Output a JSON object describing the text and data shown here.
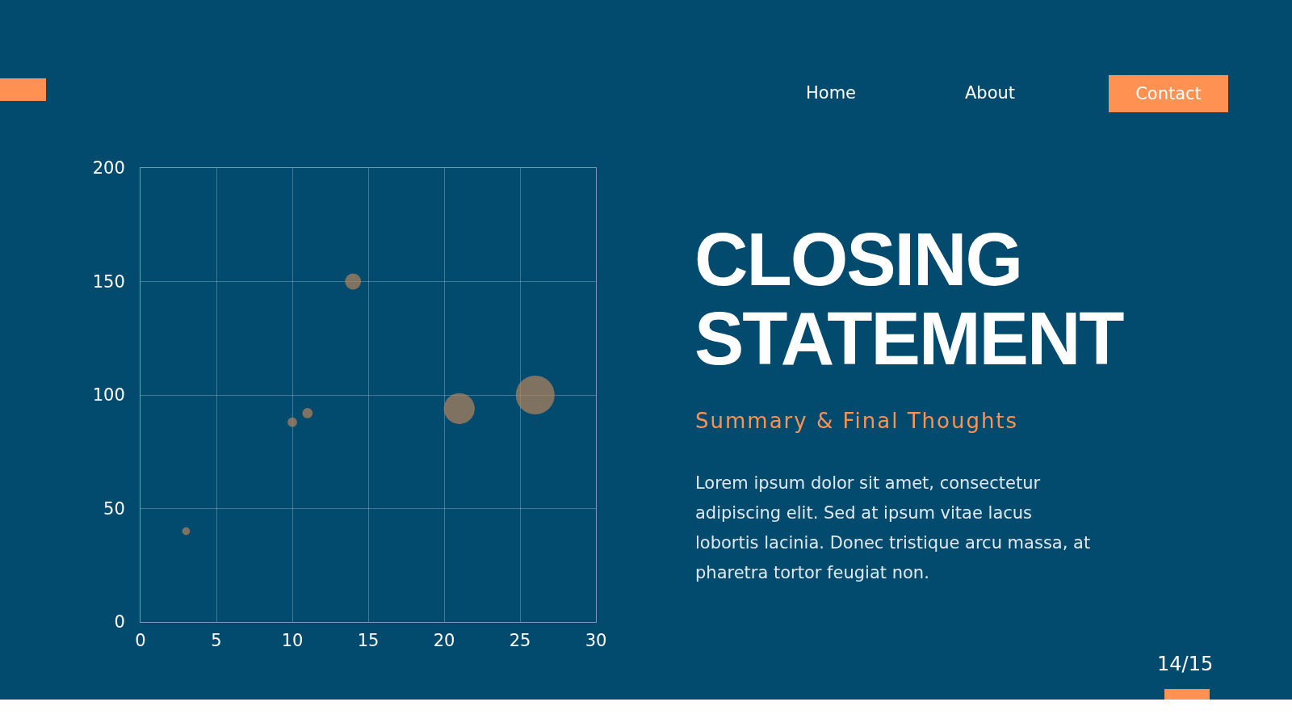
{
  "chart_data": {
    "type": "bubble",
    "title": "CLOSING STATEMENT",
    "subtitle": "Summary & Final Thoughts",
    "annotations": [
      "Home",
      "About",
      "Contact",
      "Lorem ipsum dolor sit amet, consectetur adipiscing elit. Sed at ipsum vitae lacus lobortis lacinia. Donec tristique arcu massa, at pharetra tortor feugiat non.",
      "14/15"
    ],
    "x": [
      3,
      10,
      11,
      14,
      21,
      26
    ],
    "values": [
      40,
      88,
      92,
      150,
      94,
      100
    ],
    "sizes": [
      0.04,
      0.06,
      0.07,
      0.17,
      0.63,
      1
    ],
    "color": "#b5835a",
    "xlim": [
      0,
      30
    ],
    "xticks": [
      0,
      5,
      10,
      15,
      20,
      25,
      30
    ],
    "ylim": [
      0,
      200
    ],
    "yticks": [
      0,
      50,
      100,
      150,
      200
    ],
    "grid": true
  }
}
